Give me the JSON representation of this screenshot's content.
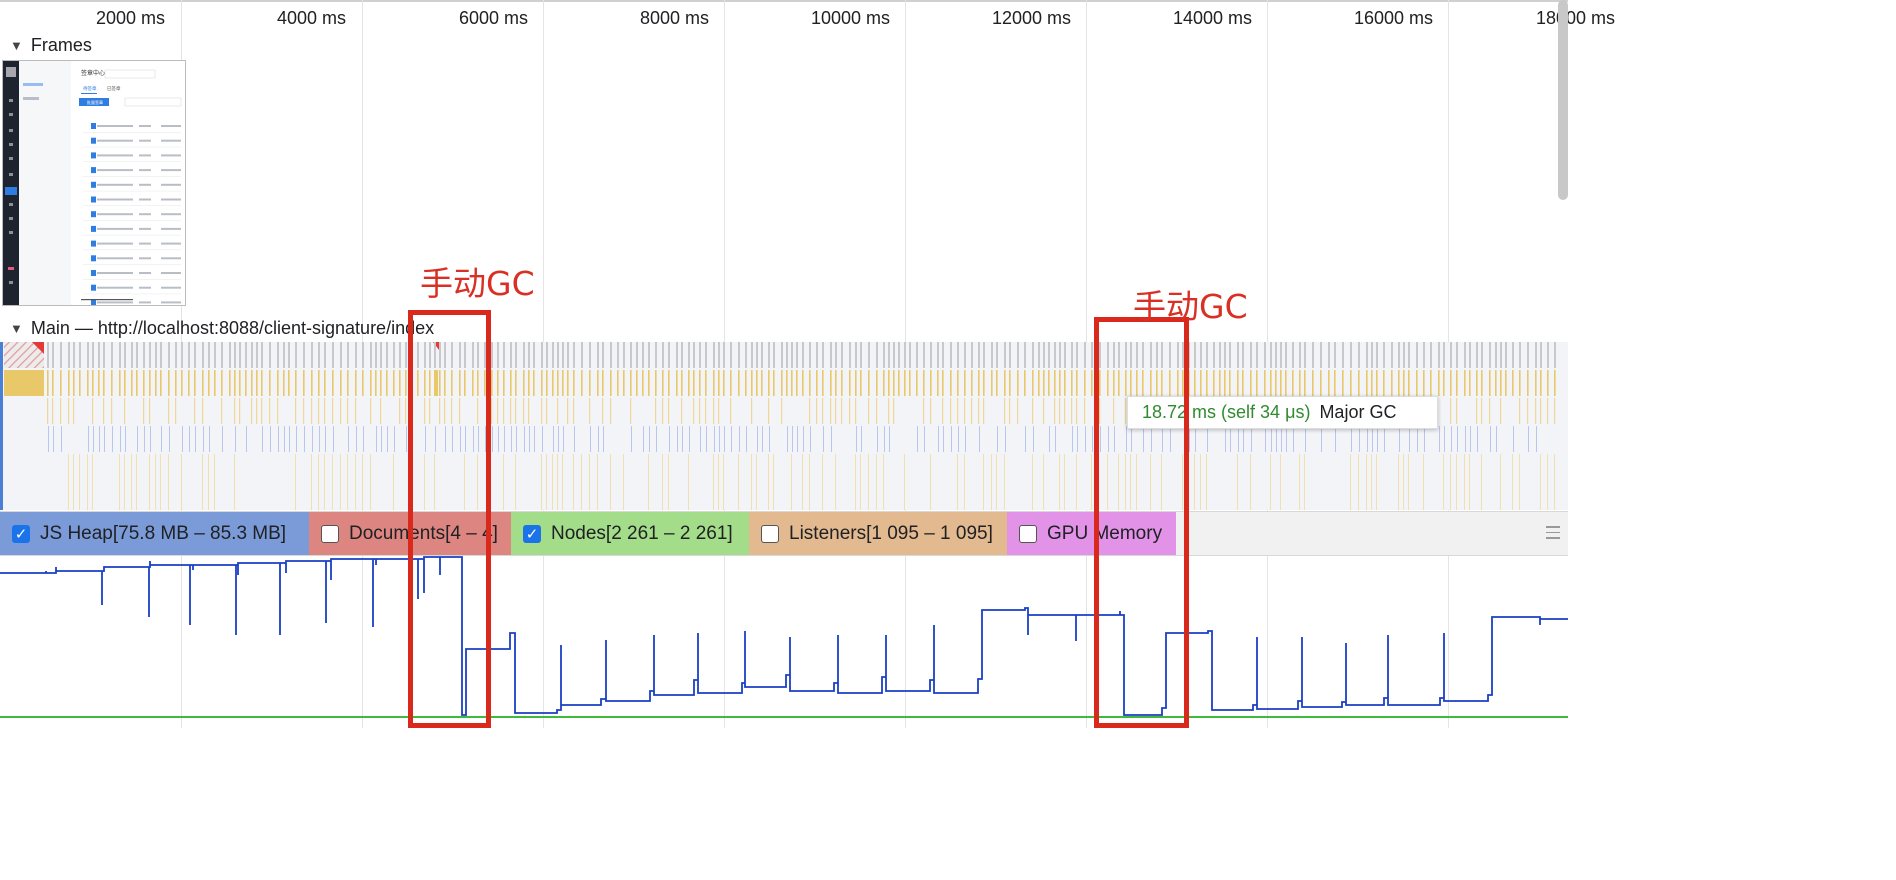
{
  "ruler": {
    "ticks": [
      "2000 ms",
      "4000 ms",
      "6000 ms",
      "8000 ms",
      "10000 ms",
      "12000 ms",
      "14000 ms",
      "16000 ms",
      "18000 ms"
    ]
  },
  "frames_track": {
    "label": "Frames"
  },
  "main_track": {
    "label": "Main — http://localhost:8088/client-signature/index"
  },
  "tooltip": {
    "duration": "18.72 ms (self 34 μs)",
    "name": "Major GC"
  },
  "annotations": [
    {
      "text": "手动GC"
    },
    {
      "text": "手动GC"
    }
  ],
  "memory_legend": [
    {
      "label": "JS Heap[75.8 MB – 85.3 MB]",
      "checked": true,
      "color": "#7b9bd8"
    },
    {
      "label": "Documents[4 – 4]",
      "checked": false,
      "color": "#dd8580"
    },
    {
      "label": "Nodes[2 261 – 2 261]",
      "checked": true,
      "color": "#a4dd8a"
    },
    {
      "label": "Listeners[1 095 – 1 095]",
      "checked": false,
      "color": "#e3ba90"
    },
    {
      "label": "GPU Memory",
      "checked": false,
      "color": "#e293e8"
    }
  ],
  "thumbnail": {
    "title": "签章中心",
    "tab1": "待签章",
    "tab2": "已签章",
    "button": "批量签章"
  },
  "colors": {
    "heap_line": "#1a3fc4",
    "nodes_line": "#3fba3a",
    "annotation_red": "#d9291c"
  }
}
